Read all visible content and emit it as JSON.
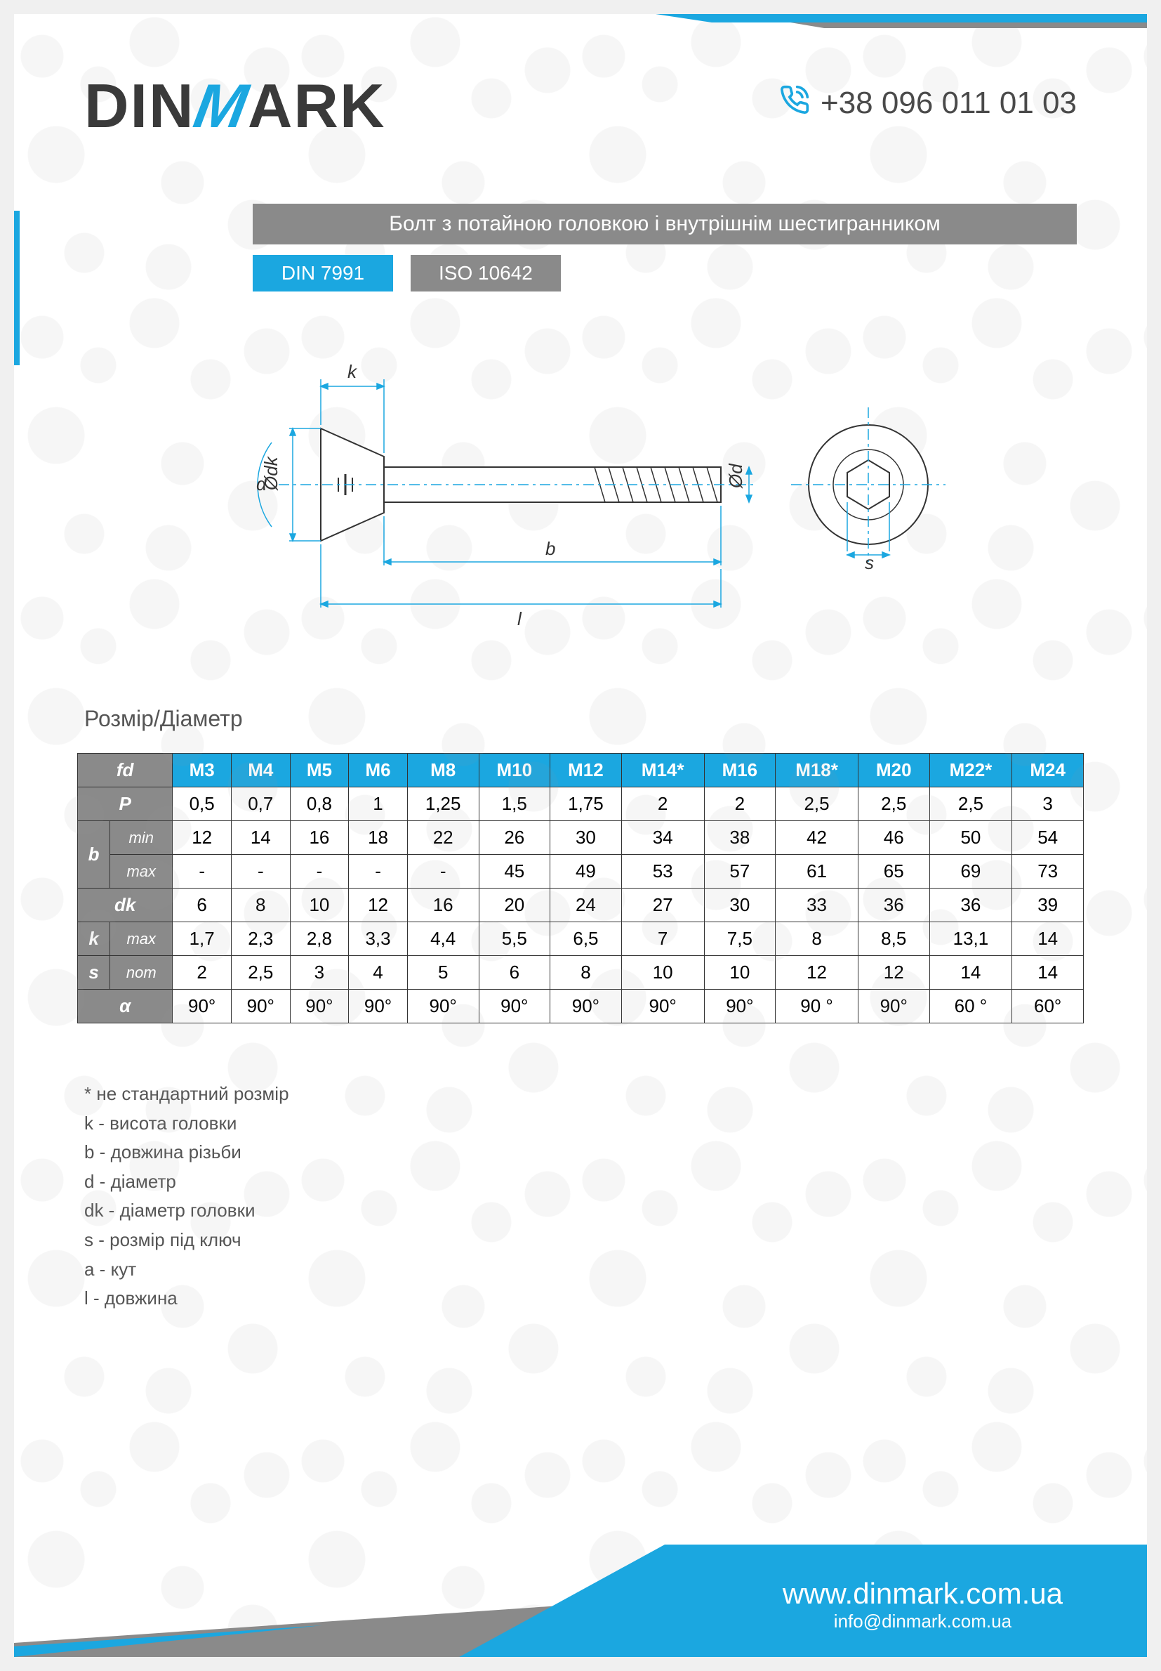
{
  "brand": {
    "name_pre": "DIN",
    "name_m": "M",
    "name_post": "ARK"
  },
  "phone": "+38 096 011 01 03",
  "title": "Болт з потайною головкою і внутрішнім шестигранником",
  "standards": {
    "din": "DIN 7991",
    "iso": "ISO 10642"
  },
  "section_label": "Розмір/Діаметр",
  "diagram": {
    "labels": [
      "k",
      "α",
      "Ødk",
      "Ød",
      "b",
      "l",
      "s"
    ],
    "line_color": "#1ba7e0",
    "outline_color": "#333333"
  },
  "colors": {
    "accent": "#1ba7e0",
    "grey": "#8a8a8a",
    "dark": "#3a3a3a",
    "text": "#555555",
    "border": "#333333",
    "white": "#ffffff"
  },
  "table": {
    "header_label": "fd",
    "columns": [
      "M3",
      "M4",
      "M5",
      "M6",
      "M8",
      "M10",
      "M12",
      "M14*",
      "M16",
      "M18*",
      "M20",
      "M22*",
      "M24"
    ],
    "rows": [
      {
        "label": "P",
        "sub": null,
        "values": [
          "0,5",
          "0,7",
          "0,8",
          "1",
          "1,25",
          "1,5",
          "1,75",
          "2",
          "2",
          "2,5",
          "2,5",
          "2,5",
          "3"
        ]
      },
      {
        "label": "b",
        "sub": "min",
        "values": [
          "12",
          "14",
          "16",
          "18",
          "22",
          "26",
          "30",
          "34",
          "38",
          "42",
          "46",
          "50",
          "54"
        ]
      },
      {
        "label": "",
        "sub": "max",
        "values": [
          "-",
          "-",
          "-",
          "-",
          "-",
          "45",
          "49",
          "53",
          "57",
          "61",
          "65",
          "69",
          "73"
        ]
      },
      {
        "label": "dk",
        "sub": null,
        "values": [
          "6",
          "8",
          "10",
          "12",
          "16",
          "20",
          "24",
          "27",
          "30",
          "33",
          "36",
          "36",
          "39"
        ]
      },
      {
        "label": "k",
        "sub": "max",
        "values": [
          "1,7",
          "2,3",
          "2,8",
          "3,3",
          "4,4",
          "5,5",
          "6,5",
          "7",
          "7,5",
          "8",
          "8,5",
          "13,1",
          "14"
        ]
      },
      {
        "label": "s",
        "sub": "nom",
        "values": [
          "2",
          "2,5",
          "3",
          "4",
          "5",
          "6",
          "8",
          "10",
          "10",
          "12",
          "12",
          "14",
          "14"
        ]
      },
      {
        "label": "α",
        "sub": null,
        "values": [
          "90°",
          "90°",
          "90°",
          "90°",
          "90°",
          "90°",
          "90°",
          "90°",
          "90°",
          "90 °",
          "90°",
          "60 °",
          "60°"
        ]
      }
    ]
  },
  "legend": [
    "* не стандартний розмір",
    "k - висота головки",
    "b - довжина різьби",
    "d - діаметр",
    "dk - діаметр головки",
    "s - розмір під ключ",
    "a - кут",
    "l - довжина"
  ],
  "footer": {
    "url": "www.dinmark.com.ua",
    "email": "info@dinmark.com.ua"
  }
}
